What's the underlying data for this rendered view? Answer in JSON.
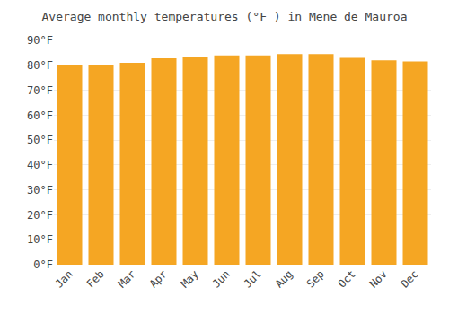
{
  "chart_data": {
    "type": "bar",
    "title": "Average monthly temperatures (°F ) in Mene de Mauroa",
    "categories": [
      "Jan",
      "Feb",
      "Mar",
      "Apr",
      "May",
      "Jun",
      "Jul",
      "Aug",
      "Sep",
      "Oct",
      "Nov",
      "Dec"
    ],
    "values": [
      79.9,
      80.1,
      81.0,
      82.8,
      83.4,
      84.0,
      84.0,
      84.5,
      84.5,
      83.0,
      82.0,
      81.5
    ],
    "color": "#F5A623",
    "ylim": [
      0,
      90
    ],
    "yticks": [
      {
        "value": 0,
        "label": "0°F"
      },
      {
        "value": 10,
        "label": "10°F"
      },
      {
        "value": 20,
        "label": "20°F"
      },
      {
        "value": 30,
        "label": "30°F"
      },
      {
        "value": 40,
        "label": "40°F"
      },
      {
        "value": 50,
        "label": "50°F"
      },
      {
        "value": 60,
        "label": "60°F"
      },
      {
        "value": 70,
        "label": "70°F"
      },
      {
        "value": 80,
        "label": "80°F"
      },
      {
        "value": 90,
        "label": "90°F"
      }
    ],
    "grid": true
  }
}
